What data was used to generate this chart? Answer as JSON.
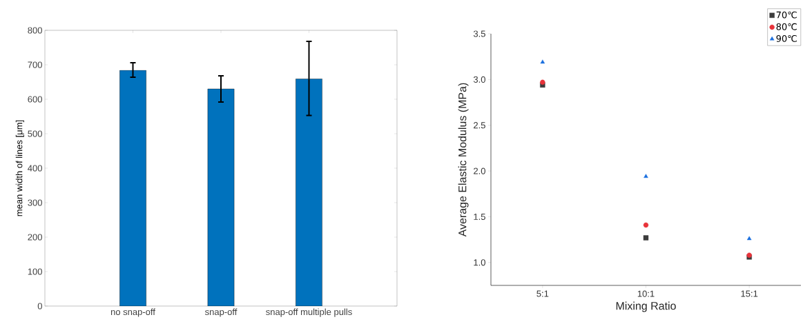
{
  "chart_data": [
    {
      "type": "bar",
      "categories": [
        "no snap-off",
        "snap-off",
        "snap-off multiple pulls"
      ],
      "values": [
        684,
        630,
        659
      ],
      "color": "#0072bd",
      "errors": [
        [
          664,
          706
        ],
        [
          592,
          668
        ],
        [
          553,
          768
        ]
      ],
      "ylabel": "mean width of lines [μm]",
      "ylim": [
        0,
        800
      ],
      "yticks": [
        0,
        100,
        200,
        300,
        400,
        500,
        600,
        700,
        800
      ],
      "grid": false,
      "legend": false
    },
    {
      "type": "scatter",
      "categories": [
        "5:1",
        "10:1",
        "15:1"
      ],
      "xlabel": "Mixing Ratio",
      "ylabel": "Average Elastic Modulus (MPa)",
      "ylim": [
        0.75,
        3.5
      ],
      "yticks": [
        {
          "value": 1,
          "label": "1.0"
        },
        1.5,
        {
          "value": 2,
          "label": "2.0"
        },
        2.5,
        {
          "value": 3,
          "label": "3.0"
        },
        3.5
      ],
      "grid": false,
      "legend": "top right",
      "series": [
        {
          "name": "70℃",
          "color": "#3c3c3c",
          "marker": "square",
          "values": [
            2.94,
            1.27,
            1.06
          ]
        },
        {
          "name": "80℃",
          "color": "#e8333a",
          "marker": "circle",
          "values": [
            2.97,
            1.41,
            1.08
          ]
        },
        {
          "name": "90℃",
          "color": "#1a6fdf",
          "marker": "triangle",
          "values": [
            3.19,
            1.94,
            1.26
          ]
        }
      ]
    }
  ]
}
